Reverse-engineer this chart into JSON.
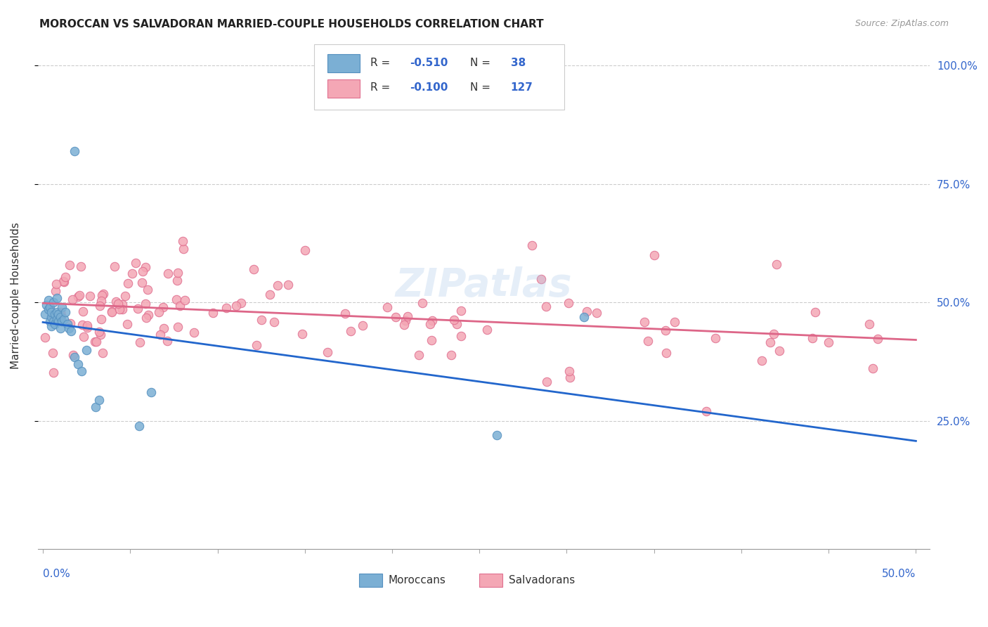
{
  "title": "MOROCCAN VS SALVADORAN MARRIED-COUPLE HOUSEHOLDS CORRELATION CHART",
  "source": "Source: ZipAtlas.com",
  "ylabel": "Married-couple Households",
  "moroccan_color": "#7bafd4",
  "moroccan_edge": "#5590c0",
  "salvadoran_color": "#f4a7b5",
  "salvadoran_edge": "#e07090",
  "moroccan_R": -0.51,
  "moroccan_N": 38,
  "salvadoran_R": -0.1,
  "salvadoran_N": 127,
  "legend_text_color": "#3366cc",
  "watermark": "ZIPatlas",
  "trend_blue_solid": "#2266cc",
  "trend_blue_dash": "#88aadd",
  "trend_pink": "#dd6688",
  "grid_color": "#cccccc",
  "right_tick_color": "#3366cc"
}
